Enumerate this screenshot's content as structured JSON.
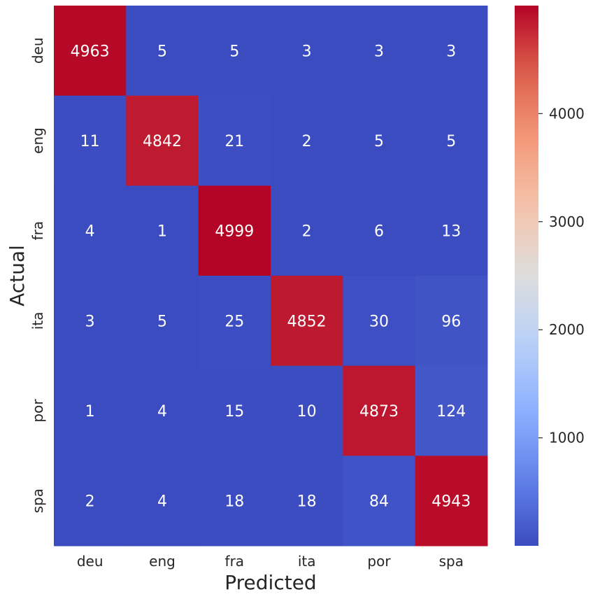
{
  "chart_data": {
    "type": "heatmap",
    "x_categories": [
      "deu",
      "eng",
      "fra",
      "ita",
      "por",
      "spa"
    ],
    "y_categories": [
      "deu",
      "eng",
      "fra",
      "ita",
      "por",
      "spa"
    ],
    "values": [
      [
        4963,
        5,
        5,
        3,
        3,
        3
      ],
      [
        11,
        4842,
        21,
        2,
        5,
        5
      ],
      [
        4,
        1,
        4999,
        2,
        6,
        13
      ],
      [
        3,
        5,
        25,
        4852,
        30,
        96
      ],
      [
        1,
        4,
        15,
        10,
        4873,
        124
      ],
      [
        2,
        4,
        18,
        18,
        84,
        4943
      ]
    ],
    "xlabel": "Predicted",
    "ylabel": "Actual",
    "colormap": "coolwarm",
    "vmin": 1,
    "vmax": 4999,
    "colorbar_ticks": [
      1000,
      2000,
      3000,
      4000
    ],
    "annotation_colors": {
      "on_dark": "#ffffff",
      "on_light": "#262626"
    }
  }
}
